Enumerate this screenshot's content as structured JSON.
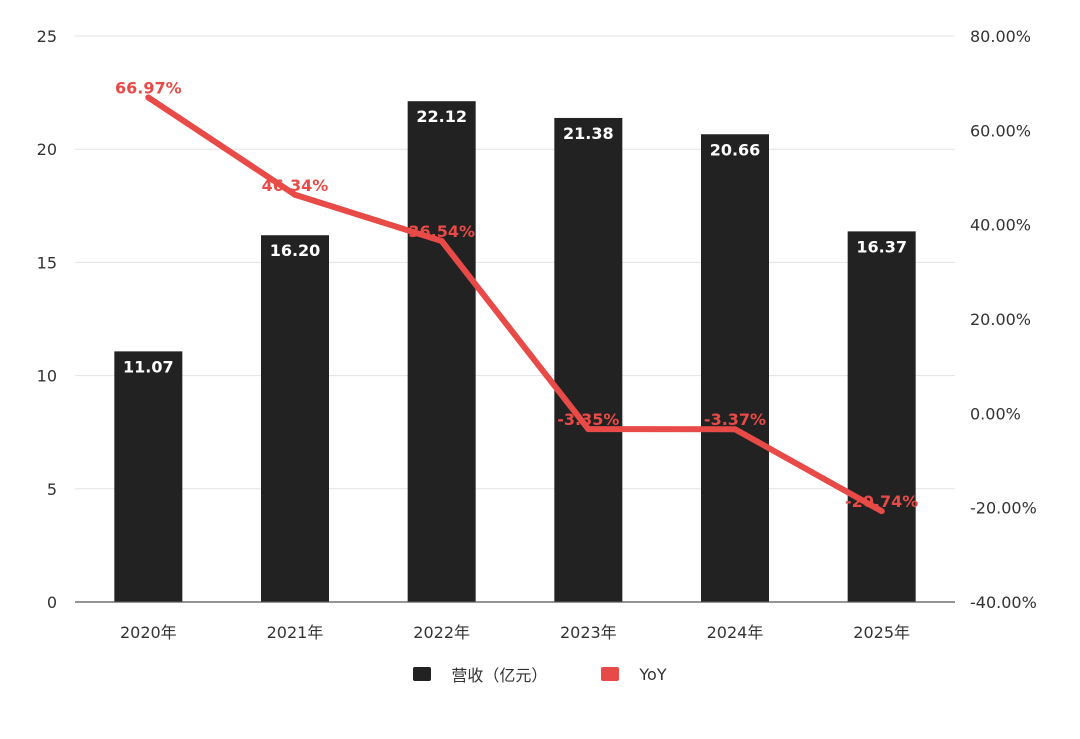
{
  "chart_data": {
    "type": "bar",
    "categories": [
      "2020年",
      "2021年",
      "2022年",
      "2023年",
      "2024年",
      "2025年"
    ],
    "series": [
      {
        "name": "营收（亿元）",
        "type": "bar",
        "axis": "left",
        "values": [
          11.07,
          16.2,
          22.12,
          21.38,
          20.66,
          16.37
        ],
        "labels": [
          "11.07",
          "16.20",
          "22.12",
          "21.38",
          "20.66",
          "16.37"
        ],
        "color": "#222222"
      },
      {
        "name": "YoY",
        "type": "line",
        "axis": "right",
        "values": [
          66.97,
          46.34,
          36.54,
          -3.35,
          -3.37,
          -20.74
        ],
        "labels": [
          "66.97%",
          "46.34%",
          "36.54%",
          "-3.35%",
          "-3.37%",
          "-20.74%"
        ],
        "color": "#e84a47"
      }
    ],
    "y_left": {
      "min": 0,
      "max": 25,
      "ticks": [
        0,
        5,
        10,
        15,
        20,
        25
      ],
      "tick_labels": [
        "0",
        "5",
        "10",
        "15",
        "20",
        "25"
      ]
    },
    "y_right": {
      "min": -40,
      "max": 80,
      "ticks": [
        -40,
        -20,
        0,
        20,
        40,
        60,
        80
      ],
      "tick_labels": [
        "-40.00%",
        "-20.00%",
        "0.00%",
        "20.00%",
        "40.00%",
        "60.00%",
        "80.00%"
      ]
    },
    "grid": true,
    "legend": "bottom-center",
    "title": "",
    "xlabel": "",
    "ylabel": ""
  }
}
